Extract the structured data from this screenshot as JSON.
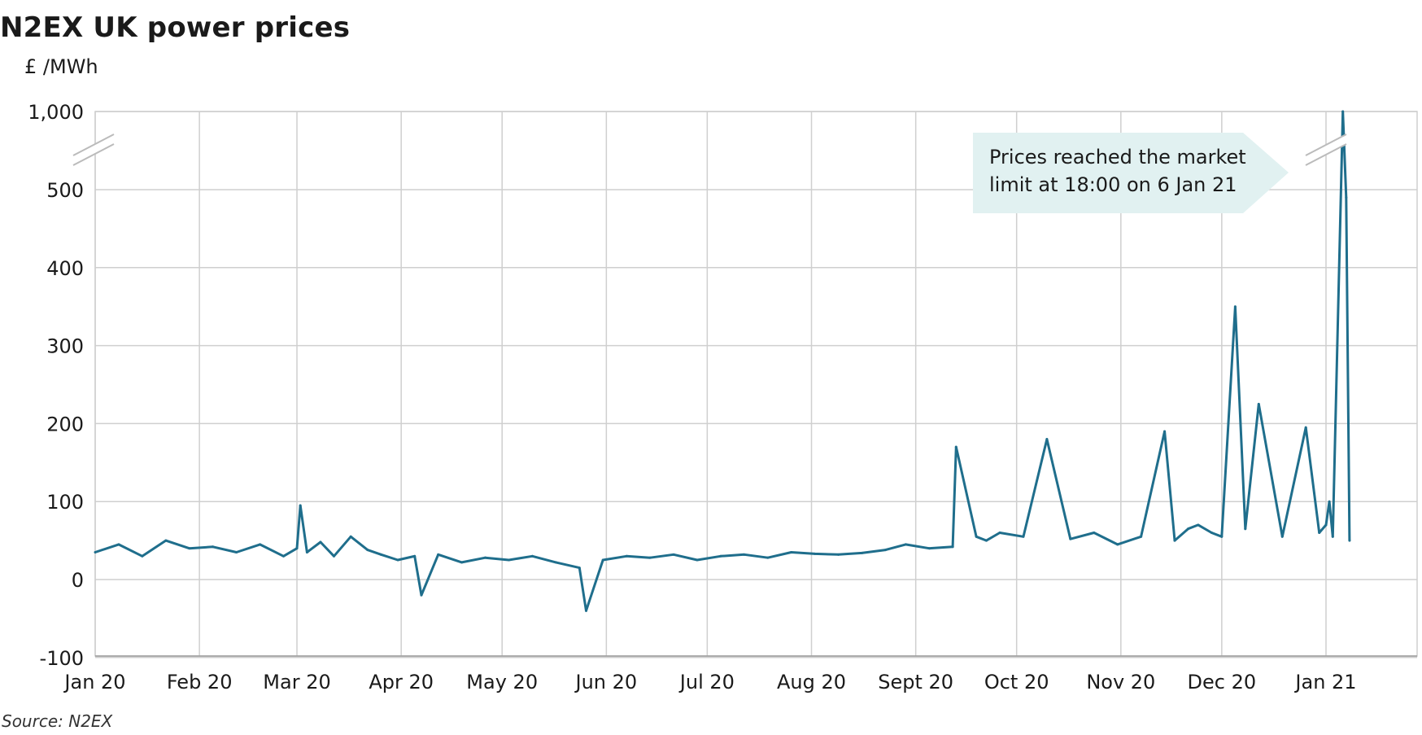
{
  "title": "N2EX UK power prices",
  "unit_label": "£ /MWh",
  "source": "Source: N2EX",
  "chart_data": {
    "type": "line",
    "title": "N2EX UK power prices",
    "ylabel": "£ /MWh",
    "xlabel": "",
    "grid": true,
    "y_axis_broken": true,
    "yticks": [
      -100,
      0,
      100,
      200,
      300,
      400,
      500,
      1000
    ],
    "ytick_labels": [
      "-100",
      "0",
      "100",
      "200",
      "300",
      "400",
      "500",
      "1,000"
    ],
    "xtick_labels": [
      "Jan 20",
      "Feb 20",
      "Mar 20",
      "Apr 20",
      "May 20",
      "Jun 20",
      "Jul 20",
      "Aug 20",
      "Sept 20",
      "Oct 20",
      "Nov 20",
      "Dec 20",
      "Jan 21"
    ],
    "xtick_dates": [
      "2020-01-01",
      "2020-02-01",
      "2020-03-01",
      "2020-04-01",
      "2020-05-01",
      "2020-06-01",
      "2020-07-01",
      "2020-08-01",
      "2020-09-01",
      "2020-10-01",
      "2020-11-01",
      "2020-12-01",
      "2021-01-01"
    ],
    "xlim": [
      "2020-01-01",
      "2021-01-31"
    ],
    "ylim": [
      -100,
      1000
    ],
    "series": [
      {
        "color": "#1f6e8c",
        "x": [
          "2020-01-01",
          "2020-01-08",
          "2020-01-15",
          "2020-01-22",
          "2020-01-29",
          "2020-02-05",
          "2020-02-12",
          "2020-02-19",
          "2020-02-26",
          "2020-03-01",
          "2020-03-02",
          "2020-03-04",
          "2020-03-08",
          "2020-03-12",
          "2020-03-17",
          "2020-03-22",
          "2020-03-26",
          "2020-03-31",
          "2020-04-05",
          "2020-04-07",
          "2020-04-12",
          "2020-04-19",
          "2020-04-26",
          "2020-05-03",
          "2020-05-10",
          "2020-05-17",
          "2020-05-24",
          "2020-05-26",
          "2020-05-31",
          "2020-06-07",
          "2020-06-14",
          "2020-06-21",
          "2020-06-28",
          "2020-07-05",
          "2020-07-12",
          "2020-07-19",
          "2020-07-26",
          "2020-08-02",
          "2020-08-09",
          "2020-08-16",
          "2020-08-23",
          "2020-08-29",
          "2020-09-05",
          "2020-09-12",
          "2020-09-13",
          "2020-09-19",
          "2020-09-22",
          "2020-09-26",
          "2020-10-03",
          "2020-10-10",
          "2020-10-17",
          "2020-10-24",
          "2020-10-31",
          "2020-11-07",
          "2020-11-14",
          "2020-11-17",
          "2020-11-21",
          "2020-11-24",
          "2020-11-28",
          "2020-12-01",
          "2020-12-05",
          "2020-12-08",
          "2020-12-12",
          "2020-12-19",
          "2020-12-26",
          "2020-12-30",
          "2021-01-01",
          "2021-01-02",
          "2021-01-03",
          "2021-01-06",
          "2021-01-07",
          "2021-01-08"
        ],
        "values": [
          35,
          45,
          30,
          50,
          40,
          42,
          35,
          45,
          30,
          40,
          95,
          35,
          48,
          30,
          55,
          38,
          32,
          25,
          30,
          -20,
          32,
          22,
          28,
          25,
          30,
          22,
          15,
          -40,
          25,
          30,
          28,
          32,
          25,
          30,
          32,
          28,
          35,
          33,
          32,
          34,
          38,
          45,
          40,
          42,
          170,
          55,
          50,
          60,
          55,
          180,
          52,
          60,
          45,
          55,
          190,
          50,
          65,
          70,
          60,
          55,
          350,
          65,
          225,
          55,
          195,
          60,
          70,
          100,
          55,
          1000,
          490,
          50
        ]
      }
    ],
    "annotations": [
      {
        "text_line1": "Prices reached the market",
        "text_line2": "limit at 18:00 on 6 Jan 21",
        "target_date": "2021-01-06",
        "target_value": 1000
      }
    ]
  }
}
